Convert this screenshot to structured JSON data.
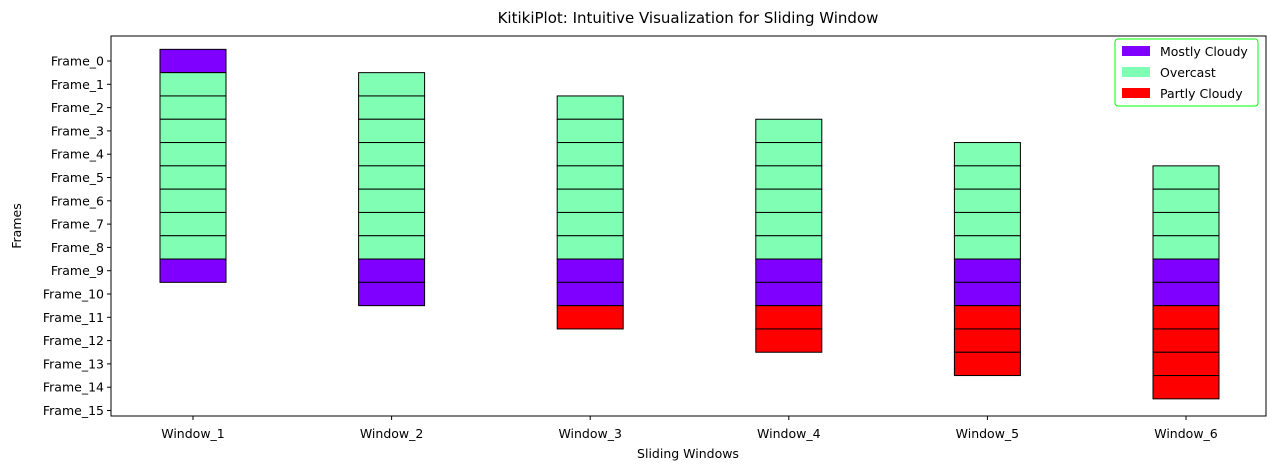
{
  "chart_data": {
    "type": "bar",
    "title": "KitikiPlot: Intuitive Visualization for Sliding Window",
    "xlabel": "Sliding Windows",
    "ylabel": "Frames",
    "categories": [
      "Window_1",
      "Window_2",
      "Window_3",
      "Window_4",
      "Window_5",
      "Window_6"
    ],
    "y_ticks": [
      "Frame_0",
      "Frame_1",
      "Frame_2",
      "Frame_3",
      "Frame_4",
      "Frame_5",
      "Frame_6",
      "Frame_7",
      "Frame_8",
      "Frame_9",
      "Frame_10",
      "Frame_11",
      "Frame_12",
      "Frame_13",
      "Frame_14",
      "Frame_15"
    ],
    "legend": {
      "position": "top-right",
      "border_color": "#00ff00",
      "entries": [
        {
          "name": "Mostly Cloudy",
          "color": "#8000ff"
        },
        {
          "name": "Overcast",
          "color": "#80ffb4"
        },
        {
          "name": "Partly Cloudy",
          "color": "#ff0000"
        }
      ]
    },
    "windows": [
      {
        "window": "Window_1",
        "start_frame": 0,
        "cells": [
          "Mostly Cloudy",
          "Overcast",
          "Overcast",
          "Overcast",
          "Overcast",
          "Overcast",
          "Overcast",
          "Overcast",
          "Overcast",
          "Mostly Cloudy"
        ]
      },
      {
        "window": "Window_2",
        "start_frame": 1,
        "cells": [
          "Overcast",
          "Overcast",
          "Overcast",
          "Overcast",
          "Overcast",
          "Overcast",
          "Overcast",
          "Overcast",
          "Mostly Cloudy",
          "Mostly Cloudy"
        ]
      },
      {
        "window": "Window_3",
        "start_frame": 2,
        "cells": [
          "Overcast",
          "Overcast",
          "Overcast",
          "Overcast",
          "Overcast",
          "Overcast",
          "Overcast",
          "Mostly Cloudy",
          "Mostly Cloudy",
          "Partly Cloudy"
        ]
      },
      {
        "window": "Window_4",
        "start_frame": 3,
        "cells": [
          "Overcast",
          "Overcast",
          "Overcast",
          "Overcast",
          "Overcast",
          "Overcast",
          "Mostly Cloudy",
          "Mostly Cloudy",
          "Partly Cloudy",
          "Partly Cloudy"
        ]
      },
      {
        "window": "Window_5",
        "start_frame": 4,
        "cells": [
          "Overcast",
          "Overcast",
          "Overcast",
          "Overcast",
          "Overcast",
          "Mostly Cloudy",
          "Mostly Cloudy",
          "Partly Cloudy",
          "Partly Cloudy",
          "Partly Cloudy"
        ]
      },
      {
        "window": "Window_6",
        "start_frame": 5,
        "cells": [
          "Overcast",
          "Overcast",
          "Overcast",
          "Overcast",
          "Mostly Cloudy",
          "Mostly Cloudy",
          "Partly Cloudy",
          "Partly Cloudy",
          "Partly Cloudy",
          "Partly Cloudy"
        ]
      }
    ],
    "grid": false
  }
}
